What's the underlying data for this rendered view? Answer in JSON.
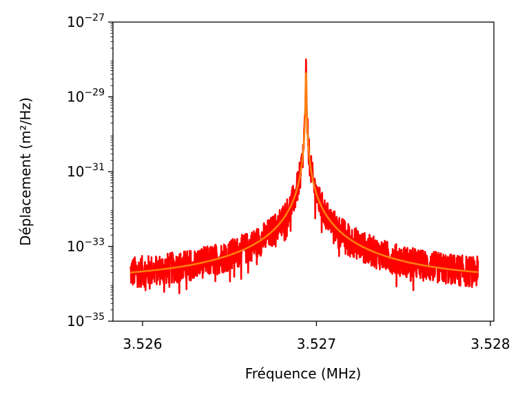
{
  "chart_data": {
    "type": "line",
    "title": "",
    "xlabel": "Fréquence (MHz)",
    "ylabel": "Déplacement (m²/Hz)",
    "xlim": [
      3.52583,
      3.52802
    ],
    "ylim": [
      1e-35,
      1e-27
    ],
    "yscale": "log",
    "grid": false,
    "legend": "none",
    "xticks": [
      {
        "value": 3.526,
        "label": "3.526"
      },
      {
        "value": 3.527,
        "label": "3.527"
      },
      {
        "value": 3.528,
        "label": "3.528"
      }
    ],
    "yticks": [
      {
        "value": 1e-35,
        "base": "10",
        "exp": "−35"
      },
      {
        "value": 1e-33,
        "base": "10",
        "exp": "−33"
      },
      {
        "value": 1e-31,
        "base": "10",
        "exp": "−31"
      },
      {
        "value": 1e-29,
        "base": "10",
        "exp": "−29"
      },
      {
        "value": 1e-27,
        "base": "10",
        "exp": "−27"
      }
    ],
    "series": [
      {
        "color": "#ff0000",
        "kind": "measured noisy spectrum",
        "x_range": [
          3.52593,
          3.52793
        ],
        "peak": {
          "x": 3.52694,
          "y": 1e-28
        },
        "edge_level": 2e-34
      },
      {
        "color": "#ff7f0e",
        "kind": "lorentzian fit",
        "x_range": [
          3.52593,
          3.52793
        ],
        "center": 3.52694,
        "peak": 1e-28,
        "edge_level": 2e-34
      }
    ]
  }
}
